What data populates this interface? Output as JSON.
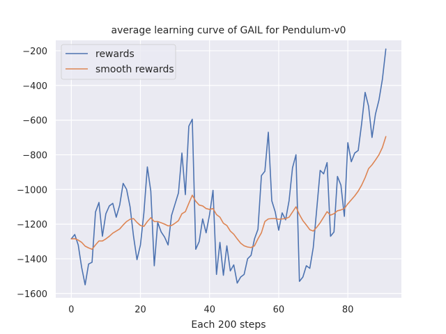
{
  "chart_data": {
    "type": "line",
    "title": "average learning curve of GAIL for Pendulum-v0",
    "xlabel": "Each 200 steps",
    "ylabel": "",
    "xlim": [
      -4.5,
      95.5
    ],
    "ylim": [
      -1625,
      -140
    ],
    "xticks": [
      0,
      20,
      40,
      60,
      80
    ],
    "yticks": [
      -1600,
      -1400,
      -1200,
      -1000,
      -800,
      -600,
      -400,
      -200
    ],
    "grid": true,
    "legend_position": "top-left",
    "background_color": "#eaeaf2",
    "series": [
      {
        "name": "rewards",
        "color": "#4c72b0",
        "x": [
          0,
          1,
          2,
          3,
          4,
          5,
          6,
          7,
          8,
          9,
          10,
          11,
          12,
          13,
          14,
          15,
          16,
          17,
          18,
          19,
          20,
          21,
          22,
          23,
          24,
          25,
          26,
          27,
          28,
          29,
          30,
          31,
          32,
          33,
          34,
          35,
          36,
          37,
          38,
          39,
          40,
          41,
          42,
          43,
          44,
          45,
          46,
          47,
          48,
          49,
          50,
          51,
          52,
          53,
          54,
          55,
          56,
          57,
          58,
          59,
          60,
          61,
          62,
          63,
          64,
          65,
          66,
          67,
          68,
          69,
          70,
          71,
          72,
          73,
          74,
          75,
          76,
          77,
          78,
          79,
          80,
          81,
          82,
          83,
          84,
          85,
          86,
          87,
          88,
          89,
          90,
          91
        ],
        "values": [
          -1285,
          -1260,
          -1320,
          -1450,
          -1550,
          -1430,
          -1420,
          -1130,
          -1075,
          -1270,
          -1140,
          -1095,
          -1080,
          -1160,
          -1090,
          -965,
          -1000,
          -1100,
          -1270,
          -1405,
          -1320,
          -1135,
          -870,
          -1010,
          -1440,
          -1190,
          -1245,
          -1275,
          -1320,
          -1150,
          -1085,
          -1020,
          -790,
          -1030,
          -635,
          -595,
          -1345,
          -1300,
          -1170,
          -1250,
          -1145,
          -1005,
          -1490,
          -1305,
          -1495,
          -1325,
          -1470,
          -1435,
          -1540,
          -1505,
          -1490,
          -1400,
          -1380,
          -1285,
          -1230,
          -920,
          -895,
          -670,
          -1065,
          -1130,
          -1235,
          -1135,
          -1175,
          -1065,
          -875,
          -800,
          -1530,
          -1505,
          -1440,
          -1455,
          -1335,
          -1115,
          -890,
          -910,
          -845,
          -1270,
          -1245,
          -925,
          -975,
          -1155,
          -730,
          -840,
          -790,
          -775,
          -620,
          -440,
          -520,
          -700,
          -565,
          -485,
          -365,
          -190
        ]
      },
      {
        "name": "smooth rewards",
        "color": "#dd8452",
        "x": [
          0,
          1,
          2,
          3,
          4,
          5,
          6,
          7,
          8,
          9,
          10,
          11,
          12,
          13,
          14,
          15,
          16,
          17,
          18,
          19,
          20,
          21,
          22,
          23,
          24,
          25,
          26,
          27,
          28,
          29,
          30,
          31,
          32,
          33,
          34,
          35,
          36,
          37,
          38,
          39,
          40,
          41,
          42,
          43,
          44,
          45,
          46,
          47,
          48,
          49,
          50,
          51,
          52,
          53,
          54,
          55,
          56,
          57,
          58,
          59,
          60,
          61,
          62,
          63,
          64,
          65,
          66,
          67,
          68,
          69,
          70,
          71,
          72,
          73,
          74,
          75,
          76,
          77,
          78,
          79,
          80,
          81,
          82,
          83,
          84,
          85,
          86,
          87,
          88,
          89,
          90,
          91
        ],
        "values": [
          -1285,
          -1284,
          -1292,
          -1305,
          -1327,
          -1337,
          -1345,
          -1320,
          -1297,
          -1297,
          -1285,
          -1270,
          -1252,
          -1240,
          -1228,
          -1205,
          -1185,
          -1172,
          -1168,
          -1190,
          -1208,
          -1213,
          -1185,
          -1163,
          -1185,
          -1185,
          -1192,
          -1200,
          -1210,
          -1208,
          -1195,
          -1180,
          -1140,
          -1128,
          -1080,
          -1033,
          -1068,
          -1090,
          -1095,
          -1110,
          -1115,
          -1110,
          -1145,
          -1160,
          -1195,
          -1208,
          -1240,
          -1258,
          -1285,
          -1310,
          -1325,
          -1332,
          -1335,
          -1325,
          -1285,
          -1250,
          -1185,
          -1170,
          -1168,
          -1168,
          -1172,
          -1170,
          -1168,
          -1160,
          -1130,
          -1100,
          -1145,
          -1180,
          -1205,
          -1232,
          -1240,
          -1218,
          -1192,
          -1160,
          -1128,
          -1148,
          -1140,
          -1123,
          -1118,
          -1110,
          -1083,
          -1060,
          -1037,
          -1010,
          -975,
          -932,
          -880,
          -858,
          -830,
          -800,
          -758,
          -695
        ]
      }
    ]
  }
}
